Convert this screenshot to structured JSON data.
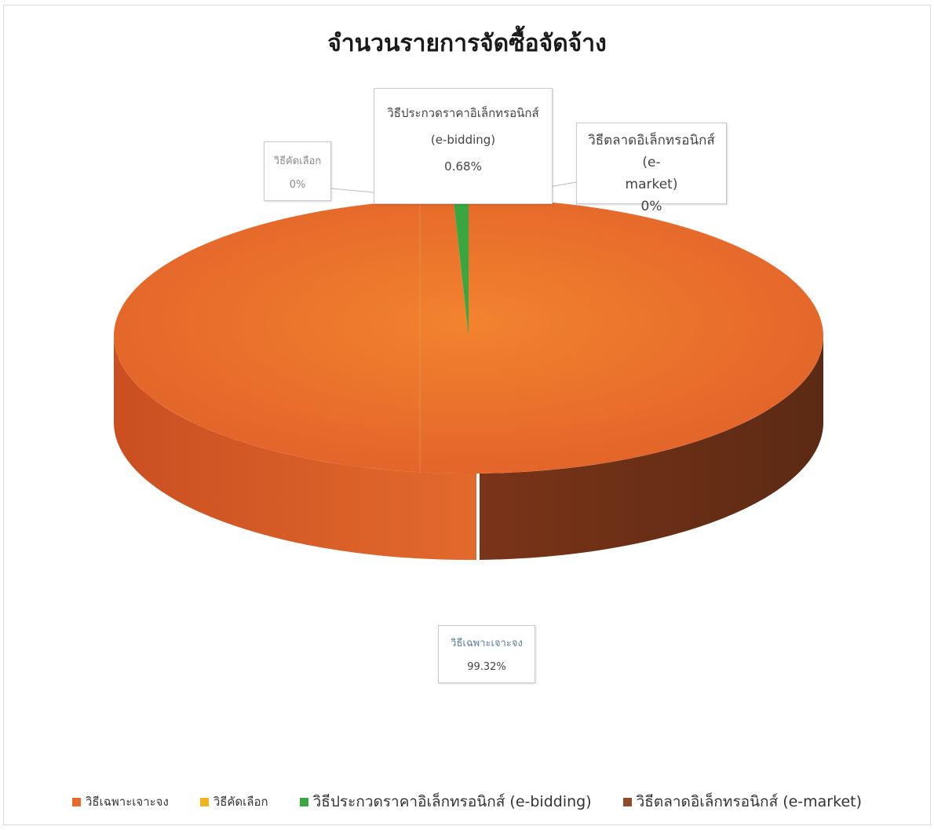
{
  "chart_data": {
    "type": "pie",
    "title": "จำนวนรายการจัดซื้อจัดจ้าง",
    "slices": [
      {
        "name": "วิธีเฉพาะเจาะจง",
        "value": 99.32,
        "label": "99.32%",
        "color": "#e8692a"
      },
      {
        "name": "วิธีคัดเลือก",
        "value": 0,
        "label": "0%",
        "color": "#f2b21b"
      },
      {
        "name": "วิธีประกวดราคาอิเล็กทรอนิกส์ (e-bidding)",
        "value": 0.68,
        "label": "0.68%",
        "color": "#3aa640"
      },
      {
        "name": "วิธีตลาดอิเล็กทรอนิกส์ (e-market)",
        "value": 0,
        "label": "0%",
        "color": "#8e4a2a"
      }
    ],
    "legend_position": "bottom",
    "style": "3d-exploded"
  },
  "labels": {
    "ebid_name": "วิธีประกวดราคาอิเล็กทรอนิกส์",
    "ebid_name2": "(e-bidding)",
    "ebid_pct": "0.68%",
    "select_name": "วิธีคัดเลือก",
    "select_pct": "0%",
    "emarket_name": "วิธีตลาดอิเล็กทรอนิกส์ (e-",
    "emarket_name2": "market)",
    "emarket_pct": "0%",
    "specific_name": "วิธีเฉพาะเจาะจง",
    "specific_pct": "99.32%"
  },
  "legend": {
    "item1": "วิธีเฉพาะเจาะจง",
    "item2": "วิธีคัดเลือก",
    "item3": "วิธีประกวดราคาอิเล็กทรอนิกส์ (e-bidding)",
    "item4": "วิธีตลาดอิเล็กทรอนิกส์ (e-market)"
  }
}
